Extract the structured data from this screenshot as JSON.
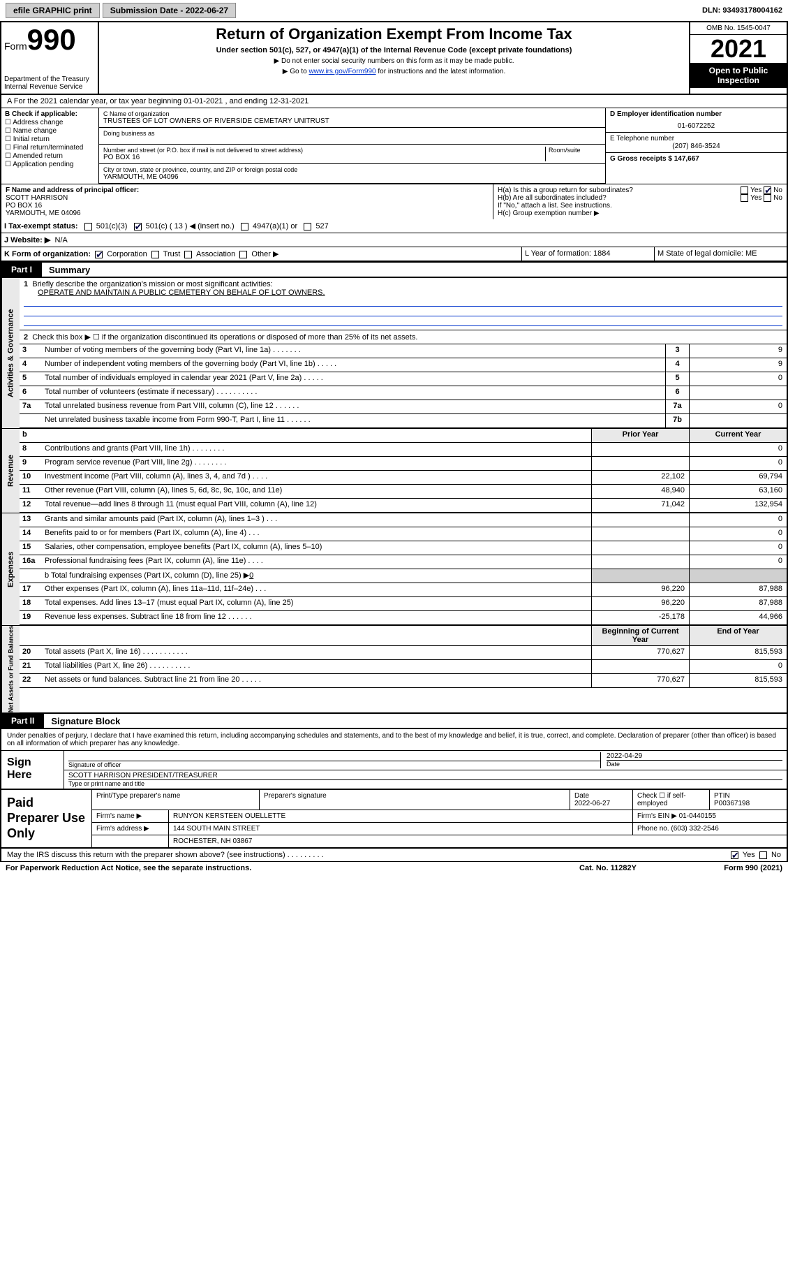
{
  "topbar": {
    "efile_label": "efile GRAPHIC print",
    "submission_label": "Submission Date - 2022-06-27",
    "dln_label": "DLN: 93493178004162"
  },
  "header": {
    "form_prefix": "Form",
    "form_no": "990",
    "dept": "Department of the Treasury",
    "irs": "Internal Revenue Service",
    "title": "Return of Organization Exempt From Income Tax",
    "sub": "Under section 501(c), 527, or 4947(a)(1) of the Internal Revenue Code (except private foundations)",
    "note1": "▶ Do not enter social security numbers on this form as it may be made public.",
    "note2_pre": "▶ Go to ",
    "note2_link": "www.irs.gov/Form990",
    "note2_post": " for instructions and the latest information.",
    "omb": "OMB No. 1545-0047",
    "year": "2021",
    "open": "Open to Public Inspection"
  },
  "section_a": "A For the 2021 calendar year, or tax year beginning 01-01-2021   , and ending 12-31-2021",
  "blockB": {
    "hdr": "B Check if applicable:",
    "opts": [
      "☐ Address change",
      "☐ Name change",
      "☐ Initial return",
      "☐ Final return/terminated",
      "☐ Amended return",
      "☐ Application pending"
    ]
  },
  "blockC": {
    "name_lbl": "C Name of organization",
    "name": "TRUSTEES OF LOT OWNERS OF RIVERSIDE CEMETARY UNITRUST",
    "dba_lbl": "Doing business as",
    "addr_lbl": "Number and street (or P.O. box if mail is not delivered to street address)",
    "room_lbl": "Room/suite",
    "addr": "PO BOX 16",
    "city_lbl": "City or town, state or province, country, and ZIP or foreign postal code",
    "city": "YARMOUTH, ME  04096"
  },
  "blockD": {
    "lbl": "D Employer identification number",
    "val": "01-6072252"
  },
  "blockE": {
    "lbl": "E Telephone number",
    "val": "(207) 846-3524"
  },
  "blockG": {
    "lbl": "G Gross receipts $ 147,667"
  },
  "blockF": {
    "lbl": "F Name and address of principal officer:",
    "name": "SCOTT HARRISON",
    "addr1": "PO BOX 16",
    "addr2": "YARMOUTH, ME  04096"
  },
  "blockH": {
    "a": "H(a)  Is this a group return for subordinates?",
    "b": "H(b)  Are all subordinates included?",
    "attach": "If \"No,\" attach a list. See instructions.",
    "c": "H(c)  Group exemption number ▶",
    "yes": "Yes",
    "no": "No"
  },
  "lineI": {
    "lbl": "I   Tax-exempt status:",
    "o1": "501(c)(3)",
    "o2": "501(c) ( 13 ) ◀ (insert no.)",
    "o3": "4947(a)(1) or",
    "o4": "527"
  },
  "lineJ": {
    "lbl": "J   Website: ▶",
    "val": "N/A"
  },
  "lineK": {
    "lbl": "K Form of organization:",
    "o1": "Corporation",
    "o2": "Trust",
    "o3": "Association",
    "o4": "Other ▶"
  },
  "lineL": "L Year of formation: 1884",
  "lineM": "M State of legal domicile: ME",
  "part1": {
    "tab": "Part I",
    "title": "Summary"
  },
  "ag": {
    "vlabel": "Activities & Governance",
    "l1": "Briefly describe the organization's mission or most significant activities:",
    "l1v": "OPERATE AND MAINTAIN A PUBLIC CEMETERY ON BEHALF OF LOT OWNERS.",
    "l2": "Check this box ▶ ☐  if the organization discontinued its operations or disposed of more than 25% of its net assets.",
    "rows": [
      {
        "n": "3",
        "d": "Number of voting members of the governing body (Part VI, line 1a)  .   .   .   .   .   .   .",
        "b": "3",
        "v": "9"
      },
      {
        "n": "4",
        "d": "Number of independent voting members of the governing body (Part VI, line 1b)  .   .   .   .   .",
        "b": "4",
        "v": "9"
      },
      {
        "n": "5",
        "d": "Total number of individuals employed in calendar year 2021 (Part V, line 2a)  .   .   .   .   .",
        "b": "5",
        "v": "0"
      },
      {
        "n": "6",
        "d": "Total number of volunteers (estimate if necessary)  .   .   .   .   .   .   .   .   .   .",
        "b": "6",
        "v": ""
      },
      {
        "n": "7a",
        "d": "Total unrelated business revenue from Part VIII, column (C), line 12  .   .   .   .   .   .",
        "b": "7a",
        "v": "0"
      },
      {
        "n": "",
        "d": "Net unrelated business taxable income from Form 990-T, Part I, line 11  .   .   .   .   .   .",
        "b": "7b",
        "v": ""
      }
    ]
  },
  "rev": {
    "vlabel": "Revenue",
    "hdr_b": "b",
    "hdr_prior": "Prior Year",
    "hdr_curr": "Current Year",
    "rows": [
      {
        "n": "8",
        "d": "Contributions and grants (Part VIII, line 1h)  .   .   .   .   .   .   .   .",
        "p": "",
        "c": "0"
      },
      {
        "n": "9",
        "d": "Program service revenue (Part VIII, line 2g)  .   .   .   .   .   .   .   .",
        "p": "",
        "c": "0"
      },
      {
        "n": "10",
        "d": "Investment income (Part VIII, column (A), lines 3, 4, and 7d )  .   .   .   .",
        "p": "22,102",
        "c": "69,794"
      },
      {
        "n": "11",
        "d": "Other revenue (Part VIII, column (A), lines 5, 6d, 8c, 9c, 10c, and 11e)",
        "p": "48,940",
        "c": "63,160"
      },
      {
        "n": "12",
        "d": "Total revenue—add lines 8 through 11 (must equal Part VIII, column (A), line 12)",
        "p": "71,042",
        "c": "132,954"
      }
    ]
  },
  "exp": {
    "vlabel": "Expenses",
    "rows": [
      {
        "n": "13",
        "d": "Grants and similar amounts paid (Part IX, column (A), lines 1–3 )  .   .   .",
        "p": "",
        "c": "0"
      },
      {
        "n": "14",
        "d": "Benefits paid to or for members (Part IX, column (A), line 4)  .   .   .",
        "p": "",
        "c": "0"
      },
      {
        "n": "15",
        "d": "Salaries, other compensation, employee benefits (Part IX, column (A), lines 5–10)",
        "p": "",
        "c": "0"
      },
      {
        "n": "16a",
        "d": "Professional fundraising fees (Part IX, column (A), line 11e)  .   .   .   .",
        "p": "",
        "c": "0"
      }
    ],
    "l16b": "   b  Total fundraising expenses (Part IX, column (D), line 25) ▶",
    "l16bv": "0",
    "rows2": [
      {
        "n": "17",
        "d": "Other expenses (Part IX, column (A), lines 11a–11d, 11f–24e)  .   .   .",
        "p": "96,220",
        "c": "87,988"
      },
      {
        "n": "18",
        "d": "Total expenses. Add lines 13–17 (must equal Part IX, column (A), line 25)",
        "p": "96,220",
        "c": "87,988"
      },
      {
        "n": "19",
        "d": "Revenue less expenses. Subtract line 18 from line 12  .   .   .   .   .   .",
        "p": "-25,178",
        "c": "44,966"
      }
    ]
  },
  "nab": {
    "vlabel": "Net Assets or Fund Balances",
    "hdr_beg": "Beginning of Current Year",
    "hdr_end": "End of Year",
    "rows": [
      {
        "n": "20",
        "d": "Total assets (Part X, line 16)  .   .   .   .   .   .   .   .   .   .   .",
        "p": "770,627",
        "c": "815,593"
      },
      {
        "n": "21",
        "d": "Total liabilities (Part X, line 26)  .   .   .   .   .   .   .   .   .   .",
        "p": "",
        "c": "0"
      },
      {
        "n": "22",
        "d": "Net assets or fund balances. Subtract line 21 from line 20  .   .   .   .   .",
        "p": "770,627",
        "c": "815,593"
      }
    ]
  },
  "part2": {
    "tab": "Part II",
    "title": "Signature Block"
  },
  "sig": {
    "decl": "Under penalties of perjury, I declare that I have examined this return, including accompanying schedules and statements, and to the best of my knowledge and belief, it is true, correct, and complete. Declaration of preparer (other than officer) is based on all information of which preparer has any knowledge.",
    "sign_here": "Sign Here",
    "sig_of_officer": "Signature of officer",
    "date_lbl": "Date",
    "date": "2022-04-29",
    "name_title": "SCOTT HARRISON  PRESIDENT/TREASURER",
    "name_title_lbl": "Type or print name and title"
  },
  "prep": {
    "label": "Paid Preparer Use Only",
    "h1": "Print/Type preparer's name",
    "h2": "Preparer's signature",
    "h3": "Date",
    "h3v": "2022-06-27",
    "h4": "Check ☐ if self-employed",
    "h5": "PTIN",
    "h5v": "P00367198",
    "firm_name_lbl": "Firm's name    ▶",
    "firm_name": "RUNYON KERSTEEN OUELLETTE",
    "firm_ein_lbl": "Firm's EIN ▶",
    "firm_ein": "01-0440155",
    "firm_addr_lbl": "Firm's address ▶",
    "firm_addr1": "144 SOUTH MAIN STREET",
    "firm_addr2": "ROCHESTER, NH  03867",
    "phone_lbl": "Phone no.",
    "phone": "(603) 332-2546"
  },
  "footer": {
    "discuss": "May the IRS discuss this return with the preparer shown above? (see instructions)  .   .   .   .   .   .   .   .   .",
    "yes": "Yes",
    "no": "No",
    "pra": "For Paperwork Reduction Act Notice, see the separate instructions.",
    "cat": "Cat. No. 11282Y",
    "form": "Form 990 (2021)"
  },
  "colors": {
    "link": "#0033cc",
    "shade": "#d0d0d0",
    "strip": "#e9e9e9"
  }
}
